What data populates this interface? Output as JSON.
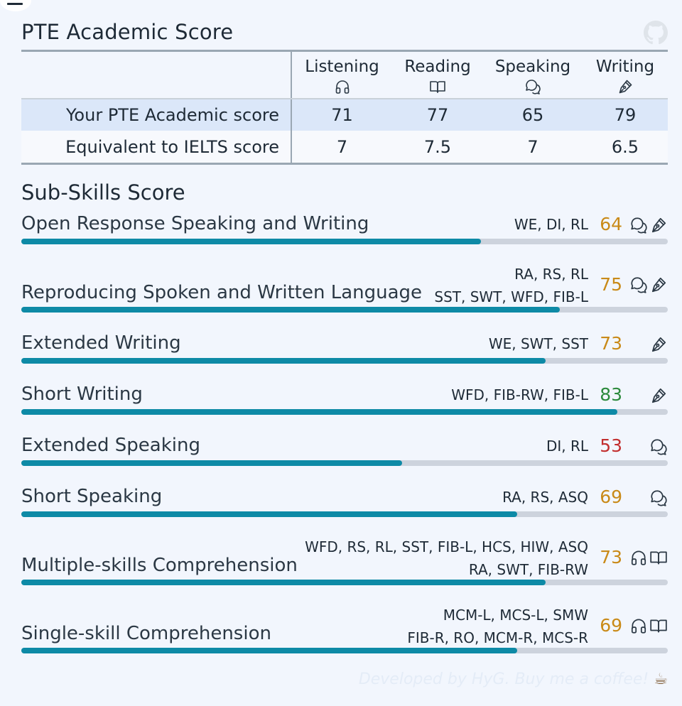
{
  "header": {
    "title": "PTE Academic Score",
    "github_icon": "github-icon"
  },
  "table": {
    "columns": [
      {
        "label": "Listening",
        "icon": "headphones-icon"
      },
      {
        "label": "Reading",
        "icon": "book-icon"
      },
      {
        "label": "Speaking",
        "icon": "chat-icon"
      },
      {
        "label": "Writing",
        "icon": "pen-icon"
      }
    ],
    "rows": [
      {
        "label": "Your PTE Academic score",
        "values": [
          "71",
          "77",
          "65",
          "79"
        ]
      },
      {
        "label": "Equivalent to IELTS score",
        "values": [
          "7",
          "7.5",
          "7",
          "6.5"
        ]
      }
    ]
  },
  "sub_skills": {
    "title": "Sub-Skills Score",
    "items": [
      {
        "name": "Open Response Speaking and Writing",
        "tasks": [
          "WE, DI, RL"
        ],
        "score": "64",
        "value": 64,
        "score_color": "#c98a18",
        "icons": [
          "chat-icon",
          "pen-icon"
        ]
      },
      {
        "name": "Reproducing Spoken and Written Language",
        "tasks": [
          "RA, RS, RL",
          "SST, SWT, WFD, FIB-L"
        ],
        "score": "75",
        "value": 75,
        "score_color": "#c98a18",
        "icons": [
          "chat-icon",
          "pen-icon"
        ]
      },
      {
        "name": "Extended Writing",
        "tasks": [
          "WE, SWT, SST"
        ],
        "score": "73",
        "value": 73,
        "score_color": "#c98a18",
        "icons": [
          "pen-icon"
        ]
      },
      {
        "name": "Short Writing",
        "tasks": [
          "WFD, FIB-RW, FIB-L"
        ],
        "score": "83",
        "value": 83,
        "score_color": "#2c8a3c",
        "icons": [
          "pen-icon"
        ]
      },
      {
        "name": "Extended Speaking",
        "tasks": [
          "DI, RL"
        ],
        "score": "53",
        "value": 53,
        "score_color": "#c22e2e",
        "icons": [
          "chat-icon"
        ]
      },
      {
        "name": "Short Speaking",
        "tasks": [
          "RA, RS, ASQ"
        ],
        "score": "69",
        "value": 69,
        "score_color": "#c98a18",
        "icons": [
          "chat-icon"
        ]
      },
      {
        "name": "Multiple-skills Comprehension",
        "tasks": [
          "WFD, RS, RL, SST, FIB-L, HCS, HIW, ASQ",
          "RA, SWT, FIB-RW"
        ],
        "score": "73",
        "value": 73,
        "score_color": "#c98a18",
        "icons": [
          "headphones-icon",
          "book-icon"
        ]
      },
      {
        "name": "Single-skill Comprehension",
        "tasks": [
          "MCM-L, MCS-L, SMW",
          "FIB-R, RO, MCM-R, MCS-R"
        ],
        "score": "69",
        "value": 69,
        "score_color": "#c98a18",
        "icons": [
          "headphones-icon",
          "book-icon"
        ]
      }
    ],
    "scale_max": 90
  },
  "footer": {
    "text": "Developed by HyG. Buy me a coffee!",
    "cup": "☕"
  },
  "colors": {
    "accent_bar": "#0e8aa6",
    "track": "#cdd3dd",
    "highlight_row": "#dbe7f9"
  }
}
